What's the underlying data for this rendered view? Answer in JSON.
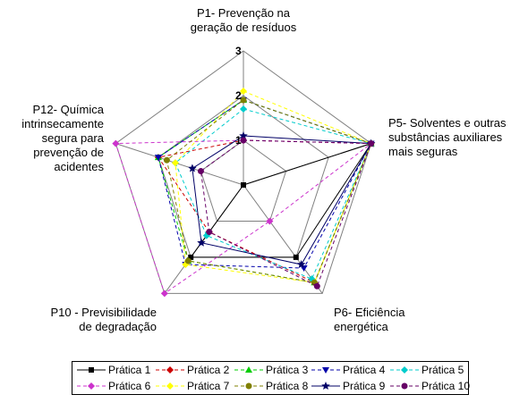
{
  "chart_data": {
    "type": "radar",
    "axes": [
      {
        "key": "P1",
        "label": "P1- Prevenção na geração de resíduos"
      },
      {
        "key": "P5",
        "label": "P5- Solventes e outras substâncias auxiliares mais seguras"
      },
      {
        "key": "P6",
        "label": "P6- Eficiência energética"
      },
      {
        "key": "P10",
        "label": "P10 - Previsibilidade de degradação"
      },
      {
        "key": "P12",
        "label": "P12- Química intrinsecamente segura para prevenção de acidentes"
      }
    ],
    "scale": {
      "min": 0,
      "max": 3,
      "ticks": [
        1,
        2,
        3
      ],
      "tick_labels": [
        "1",
        "2",
        "3"
      ]
    },
    "legend_position": "bottom",
    "series": [
      {
        "name": "Prática 1",
        "color": "#000000",
        "dash": "solid",
        "marker": "square",
        "values": [
          0,
          3,
          2,
          2,
          0
        ]
      },
      {
        "name": "Prática 2",
        "color": "#cc0000",
        "dash": "dashed",
        "marker": "diamond",
        "values": [
          1,
          3,
          2.7,
          1.3,
          2
        ]
      },
      {
        "name": "Prática 3",
        "color": "#00cc00",
        "dash": "dashed",
        "marker": "triangle",
        "values": [
          1.9,
          3,
          2.7,
          2.1,
          2
        ]
      },
      {
        "name": "Prática 4",
        "color": "#0000aa",
        "dash": "dashed",
        "marker": "triangle-down",
        "values": [
          1.9,
          3,
          2.3,
          2.2,
          2
        ]
      },
      {
        "name": "Prática 5",
        "color": "#00cccc",
        "dash": "dashed",
        "marker": "diamond",
        "values": [
          1.7,
          3,
          2.6,
          1.4,
          1.6
        ]
      },
      {
        "name": "Prática 6",
        "color": "#cc33cc",
        "dash": "dashed",
        "marker": "diamond",
        "values": [
          1,
          3,
          1,
          3,
          3
        ]
      },
      {
        "name": "Prática 7",
        "color": "#ffff00",
        "dash": "dashed",
        "marker": "diamond",
        "values": [
          2.1,
          3,
          2.7,
          2.2,
          1.6
        ]
      },
      {
        "name": "Prática 8",
        "color": "#808000",
        "dash": "dashed",
        "marker": "circle",
        "values": [
          1.9,
          3,
          2.7,
          2.1,
          1.8
        ]
      },
      {
        "name": "Prática 9",
        "color": "#000066",
        "dash": "solid",
        "marker": "star",
        "values": [
          1.1,
          3,
          2.2,
          1.6,
          1.2
        ]
      },
      {
        "name": "Prática 10",
        "color": "#660066",
        "dash": "dashed",
        "marker": "circle",
        "values": [
          1,
          3,
          2.8,
          1.3,
          1
        ]
      }
    ]
  }
}
